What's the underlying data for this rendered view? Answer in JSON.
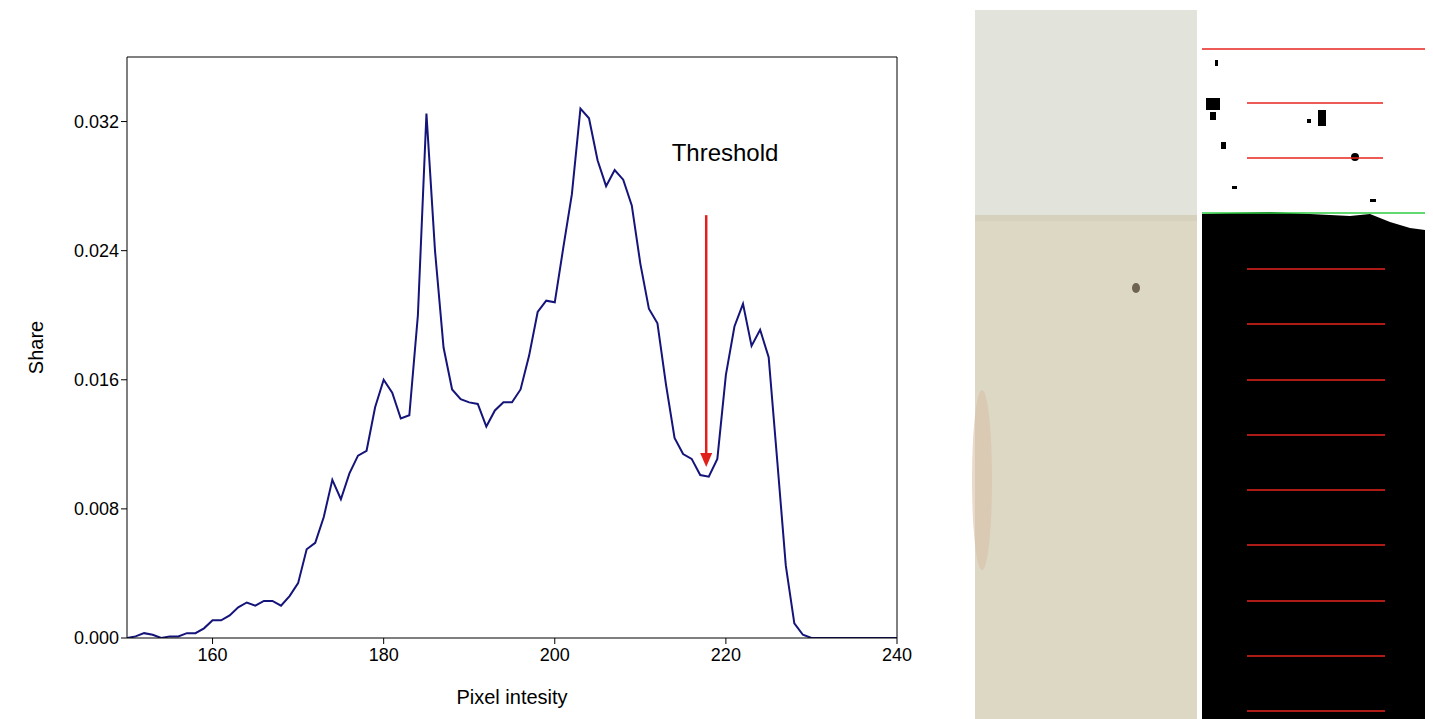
{
  "chart_data": {
    "type": "line",
    "x_label": "Pixel intesity",
    "y_label": "Share",
    "x": [
      150,
      151,
      152,
      153,
      154,
      155,
      156,
      157,
      158,
      159,
      160,
      161,
      162,
      163,
      164,
      165,
      166,
      167,
      168,
      169,
      170,
      171,
      172,
      173,
      174,
      175,
      176,
      177,
      178,
      179,
      180,
      181,
      182,
      183,
      184,
      185,
      186,
      187,
      188,
      189,
      190,
      191,
      192,
      193,
      194,
      195,
      196,
      197,
      198,
      199,
      200,
      201,
      202,
      203,
      204,
      205,
      206,
      207,
      208,
      209,
      210,
      211,
      212,
      213,
      214,
      215,
      216,
      217,
      218,
      219,
      220,
      221,
      222,
      223,
      224,
      225,
      226,
      227,
      228,
      229,
      230,
      235,
      240
    ],
    "values": [
      0.0,
      0.0001,
      0.0003,
      0.0002,
      0.0,
      0.0001,
      0.0001,
      0.0003,
      0.0003,
      0.0006,
      0.0011,
      0.0011,
      0.0014,
      0.0019,
      0.0022,
      0.002,
      0.0023,
      0.0023,
      0.002,
      0.0026,
      0.0034,
      0.0055,
      0.0059,
      0.0075,
      0.0098,
      0.0086,
      0.0102,
      0.0113,
      0.0116,
      0.0143,
      0.016,
      0.0152,
      0.0136,
      0.0138,
      0.02,
      0.0325,
      0.024,
      0.018,
      0.0154,
      0.0148,
      0.0146,
      0.0145,
      0.0131,
      0.0141,
      0.0146,
      0.0146,
      0.0154,
      0.0175,
      0.0202,
      0.0209,
      0.0208,
      0.0242,
      0.0275,
      0.0328,
      0.0322,
      0.0296,
      0.028,
      0.029,
      0.0284,
      0.0268,
      0.0232,
      0.0204,
      0.0195,
      0.0157,
      0.0124,
      0.0114,
      0.0111,
      0.0101,
      0.01,
      0.0111,
      0.0163,
      0.0193,
      0.0207,
      0.0181,
      0.0191,
      0.0174,
      0.011,
      0.0045,
      0.0009,
      0.0002,
      0.0,
      0.0,
      0.0
    ],
    "color": "#14147a",
    "xlim": [
      150,
      240
    ],
    "xticks": [
      160,
      180,
      200,
      220,
      240
    ],
    "ylim": [
      0,
      0.036
    ],
    "yticks": [
      {
        "value": 0,
        "label": "0.000"
      },
      {
        "value": 0.008,
        "label": "0.008"
      },
      {
        "value": 0.016,
        "label": "0.016"
      },
      {
        "value": 0.024,
        "label": "0.024"
      },
      {
        "value": 0.032,
        "label": "0.032"
      }
    ],
    "grid": false,
    "annotation": {
      "text": "Threshold",
      "text_x": 219.9,
      "text_y": 0.0301,
      "arrow_x": 217.7,
      "arrow_y_start": 0.0262,
      "arrow_y_end": 0.0106,
      "color": "#e0201b"
    }
  }
}
